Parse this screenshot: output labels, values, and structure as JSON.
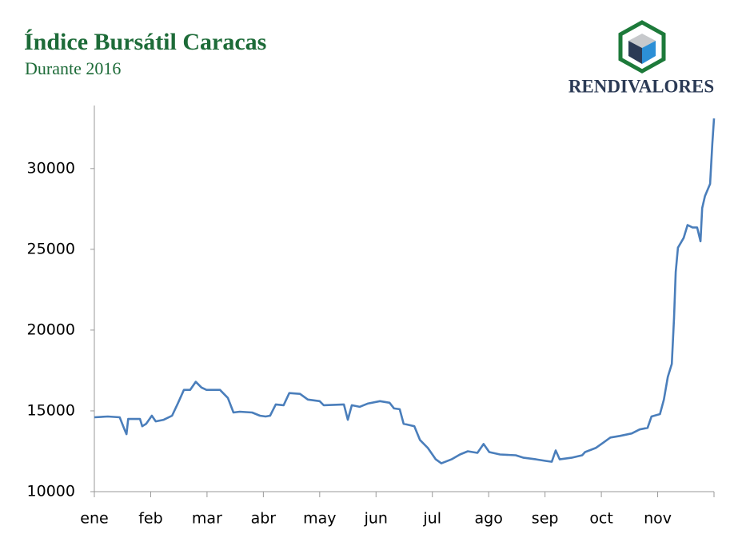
{
  "chart_data": {
    "type": "line",
    "title": "Índice Bursátil Caracas",
    "subtitle": "Durante 2016",
    "logo_text": "RENDIVALORES",
    "x": [
      0,
      0.24,
      0.45,
      0.53,
      0.57,
      0.6,
      0.81,
      0.85,
      0.92,
      1.02,
      1.09,
      1.23,
      1.38,
      1.48,
      1.59,
      1.7,
      1.8,
      1.9,
      1.99,
      2.23,
      2.37,
      2.47,
      2.58,
      2.8,
      2.94,
      3.04,
      3.12,
      3.22,
      3.36,
      3.46,
      3.65,
      3.79,
      4.0,
      4.07,
      4.43,
      4.5,
      4.57,
      4.71,
      4.85,
      5.07,
      5.24,
      5.32,
      5.42,
      5.49,
      5.68,
      5.78,
      5.92,
      6.06,
      6.16,
      6.34,
      6.49,
      6.63,
      6.8,
      6.91,
      7.01,
      7.2,
      7.48,
      7.62,
      7.84,
      8.02,
      8.12,
      8.19,
      8.26,
      8.47,
      8.66,
      8.71,
      8.9,
      9.04,
      9.16,
      9.33,
      9.54,
      9.68,
      9.82,
      9.89,
      10.04,
      10.11,
      10.18,
      10.25,
      10.29,
      10.32,
      10.36,
      10.46,
      10.53,
      10.62,
      10.7,
      10.76,
      10.79,
      10.84,
      10.93,
      10.97,
      11.0
    ],
    "series": [
      {
        "name": "Índice Bursátil Caracas",
        "color": "#4a7ebb",
        "values": [
          14600,
          14650,
          14600,
          13900,
          13560,
          14500,
          14500,
          14050,
          14200,
          14700,
          14350,
          14450,
          14700,
          15450,
          16300,
          16300,
          16800,
          16450,
          16300,
          16300,
          15800,
          14900,
          14950,
          14900,
          14700,
          14650,
          14700,
          15400,
          15350,
          16100,
          16050,
          15700,
          15600,
          15350,
          15400,
          14450,
          15350,
          15250,
          15450,
          15600,
          15500,
          15150,
          15100,
          14200,
          14050,
          13200,
          12700,
          12000,
          11750,
          12000,
          12300,
          12500,
          12400,
          12950,
          12450,
          12300,
          12250,
          12100,
          12000,
          11900,
          11850,
          12550,
          12000,
          12100,
          12250,
          12450,
          12700,
          13050,
          13350,
          13450,
          13600,
          13850,
          13950,
          14650,
          14800,
          15700,
          17100,
          17900,
          20750,
          23600,
          25100,
          25700,
          26500,
          26350,
          26350,
          25500,
          27550,
          28300,
          29050,
          31550,
          33100
        ]
      }
    ],
    "xlim": [
      0,
      11
    ],
    "xticks": [
      {
        "value": 0,
        "label": "ene"
      },
      {
        "value": 1,
        "label": "feb"
      },
      {
        "value": 2,
        "label": "mar"
      },
      {
        "value": 3,
        "label": "abr"
      },
      {
        "value": 4,
        "label": "may"
      },
      {
        "value": 5,
        "label": "jun"
      },
      {
        "value": 6,
        "label": "jul"
      },
      {
        "value": 7,
        "label": "ago"
      },
      {
        "value": 8,
        "label": "sep"
      },
      {
        "value": 9,
        "label": "oct"
      },
      {
        "value": 10,
        "label": "nov"
      }
    ],
    "ylim": [
      10000,
      33900
    ],
    "yticks": [
      10000,
      15000,
      20000,
      25000,
      30000
    ]
  }
}
